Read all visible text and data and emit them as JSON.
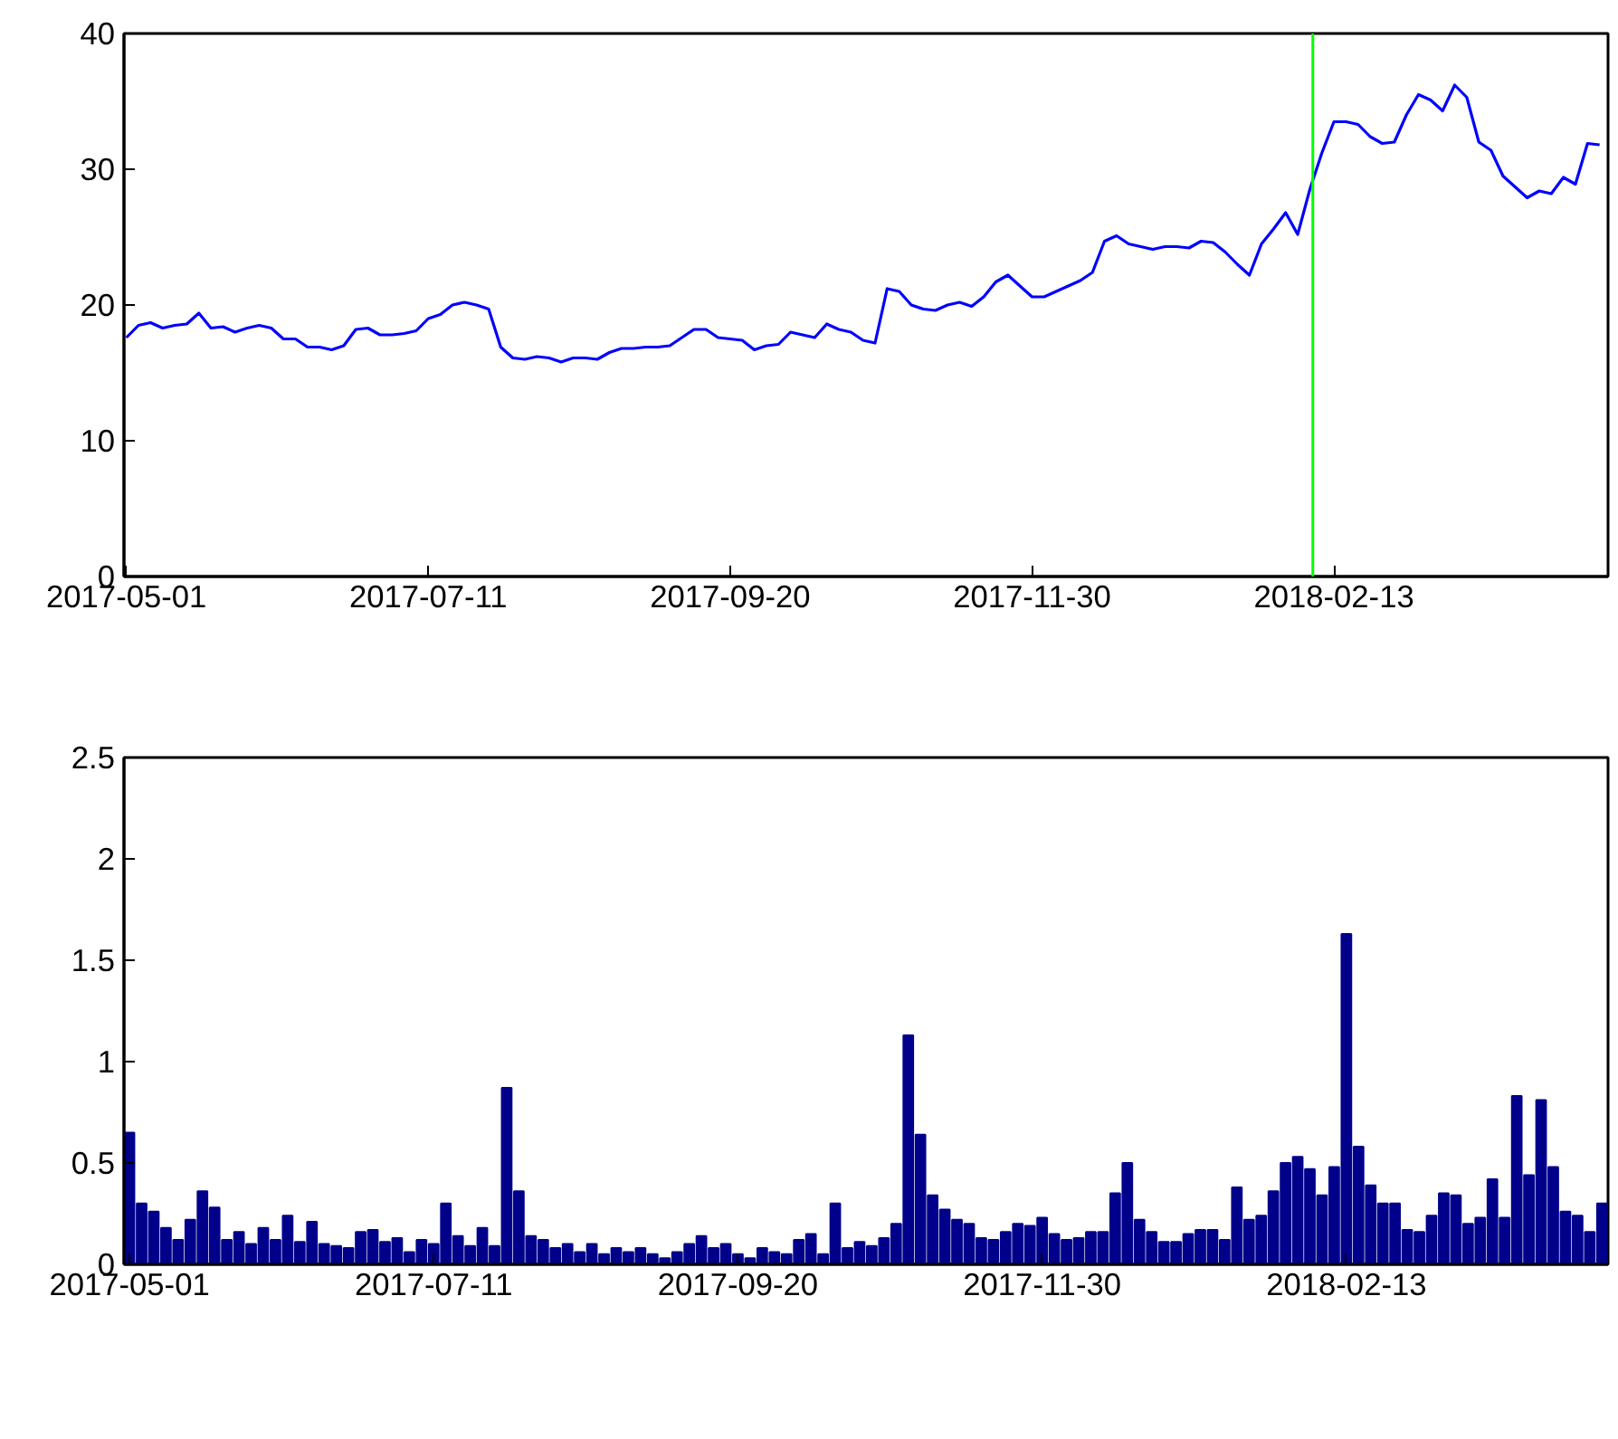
{
  "chart_data": [
    {
      "type": "line",
      "categories": [
        "2017-05-01",
        null,
        null,
        null,
        null,
        null,
        null,
        null,
        null,
        null,
        null,
        null,
        null,
        null,
        null,
        null,
        null,
        null,
        null,
        null,
        null,
        null,
        null,
        null,
        null,
        "2017-07-11",
        null,
        null,
        null,
        null,
        null,
        null,
        null,
        null,
        null,
        null,
        null,
        null,
        null,
        null,
        null,
        null,
        null,
        null,
        null,
        null,
        null,
        null,
        null,
        null,
        "2017-09-20",
        null,
        null,
        null,
        null,
        null,
        null,
        null,
        null,
        null,
        null,
        null,
        null,
        null,
        null,
        null,
        null,
        null,
        null,
        null,
        null,
        null,
        null,
        null,
        null,
        "2017-11-30",
        null,
        null,
        null,
        null,
        null,
        null,
        null,
        null,
        null,
        null,
        null,
        null,
        null,
        null,
        null,
        null,
        null,
        null,
        null,
        null,
        null,
        null,
        null,
        null,
        "2018-02-13",
        null,
        null,
        null,
        null,
        null,
        null,
        null,
        null,
        null,
        null,
        null,
        null,
        null,
        null,
        null,
        null,
        null,
        null,
        null,
        null,
        null,
        null
      ],
      "series": [
        {
          "color": "#0000ff",
          "values": [
            17.6,
            18.5,
            18.7,
            18.3,
            18.5,
            18.6,
            19.4,
            18.3,
            18.4,
            18.0,
            18.3,
            18.5,
            18.3,
            17.5,
            17.5,
            16.9,
            16.9,
            16.7,
            17.0,
            18.2,
            18.3,
            17.8,
            17.8,
            17.9,
            18.1,
            19.0,
            19.3,
            20.0,
            20.2,
            20.0,
            19.7,
            16.9,
            16.1,
            16.0,
            16.2,
            16.1,
            15.8,
            16.1,
            16.1,
            16.0,
            16.5,
            16.8,
            16.8,
            16.9,
            16.9,
            17.0,
            17.6,
            18.2,
            18.2,
            17.6,
            17.5,
            17.4,
            16.7,
            17.0,
            17.1,
            18.0,
            17.8,
            17.6,
            18.6,
            18.2,
            18.0,
            17.4,
            17.2,
            21.2,
            21.0,
            20.0,
            19.7,
            19.6,
            20.0,
            20.2,
            19.9,
            20.6,
            21.7,
            22.2,
            21.4,
            20.6,
            20.6,
            21.0,
            21.4,
            21.8,
            22.4,
            24.7,
            25.1,
            24.5,
            24.3,
            24.1,
            24.3,
            24.3,
            24.2,
            24.7,
            24.6,
            23.9,
            23.0,
            22.2,
            24.5,
            25.6,
            26.8,
            25.2,
            28.5,
            31.2,
            33.5,
            33.5,
            33.3,
            32.4,
            31.9,
            32.0,
            34.0,
            35.5,
            35.1,
            34.3,
            36.2,
            35.3,
            32.0,
            31.4,
            29.5,
            28.7,
            27.9,
            28.4,
            28.2,
            29.4,
            28.9,
            31.9,
            31.8
          ]
        }
      ],
      "ylim": [
        0,
        40
      ],
      "yticks": [
        0,
        10,
        20,
        30,
        40
      ],
      "grid": false
    },
    {
      "type": "bar",
      "categories": [
        "2017-05-01",
        null,
        null,
        null,
        null,
        null,
        null,
        null,
        null,
        null,
        null,
        null,
        null,
        null,
        null,
        null,
        null,
        null,
        null,
        null,
        null,
        null,
        null,
        null,
        null,
        "2017-07-11",
        null,
        null,
        null,
        null,
        null,
        null,
        null,
        null,
        null,
        null,
        null,
        null,
        null,
        null,
        null,
        null,
        null,
        null,
        null,
        null,
        null,
        null,
        null,
        null,
        "2017-09-20",
        null,
        null,
        null,
        null,
        null,
        null,
        null,
        null,
        null,
        null,
        null,
        null,
        null,
        null,
        null,
        null,
        null,
        null,
        null,
        null,
        null,
        null,
        null,
        null,
        "2017-11-30",
        null,
        null,
        null,
        null,
        null,
        null,
        null,
        null,
        null,
        null,
        null,
        null,
        null,
        null,
        null,
        null,
        null,
        null,
        null,
        null,
        null,
        null,
        null,
        null,
        "2018-02-13",
        null,
        null,
        null,
        null,
        null,
        null,
        null,
        null,
        null,
        null,
        null,
        null,
        null,
        null,
        null,
        null,
        null,
        null,
        null,
        null,
        null
      ],
      "series": [
        {
          "color": "#00008b",
          "values": [
            0.65,
            0.3,
            0.26,
            0.18,
            0.12,
            0.22,
            0.36,
            0.28,
            0.12,
            0.16,
            0.1,
            0.18,
            0.12,
            0.24,
            0.11,
            0.21,
            0.1,
            0.09,
            0.08,
            0.16,
            0.17,
            0.11,
            0.13,
            0.06,
            0.12,
            0.1,
            0.3,
            0.14,
            0.09,
            0.18,
            0.09,
            0.87,
            0.36,
            0.14,
            0.12,
            0.08,
            0.1,
            0.06,
            0.1,
            0.05,
            0.08,
            0.06,
            0.08,
            0.05,
            0.03,
            0.06,
            0.1,
            0.14,
            0.08,
            0.1,
            0.05,
            0.03,
            0.08,
            0.06,
            0.05,
            0.12,
            0.15,
            0.05,
            0.3,
            0.08,
            0.11,
            0.09,
            0.13,
            0.2,
            1.13,
            0.64,
            0.34,
            0.27,
            0.22,
            0.2,
            0.13,
            0.12,
            0.16,
            0.2,
            0.19,
            0.23,
            0.15,
            0.12,
            0.13,
            0.16,
            0.16,
            0.35,
            0.5,
            0.22,
            0.16,
            0.11,
            0.11,
            0.15,
            0.17,
            0.17,
            0.12,
            0.38,
            0.22,
            0.24,
            0.36,
            0.5,
            0.53,
            0.47,
            0.34,
            0.48,
            1.63,
            0.58,
            0.39,
            0.3,
            0.3,
            0.17,
            0.16,
            0.24,
            0.35,
            0.34,
            0.2,
            0.23,
            0.42,
            0.23,
            0.83,
            0.44,
            0.81,
            0.48,
            0.26,
            0.24,
            0.16,
            0.3
          ]
        }
      ],
      "ylim": [
        0,
        2.5
      ],
      "yticks": [
        0,
        0.5,
        1,
        1.5,
        2,
        2.5
      ],
      "grid": false
    }
  ]
}
